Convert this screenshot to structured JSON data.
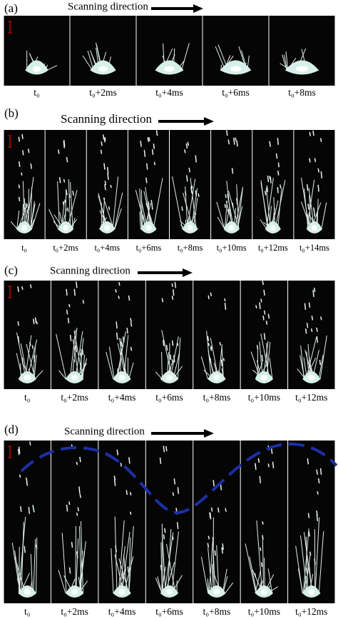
{
  "panels": [
    {
      "label": "(a)",
      "direction": "Scanning direction",
      "frames": [
        "t₀",
        "t₀+2ms",
        "t₀+4ms",
        "t₀+6ms",
        "t₀+8ms"
      ]
    },
    {
      "label": "(b)",
      "direction": "Scanning direction",
      "frames": [
        "t₀",
        "t₀+2ms",
        "t₀+4ms",
        "t₀+6ms",
        "t₀+8ms",
        "t₀+10ms",
        "t₀+12ms",
        "t₀+14ms"
      ]
    },
    {
      "label": "(c)",
      "direction": "Scanning direction",
      "frames": [
        "t₀",
        "t₀+2ms",
        "t₀+4ms",
        "t₀+6ms",
        "t₀+8ms",
        "t₀+10ms",
        "t₀+12ms"
      ]
    },
    {
      "label": "(d)",
      "direction": "Scanning direction",
      "frames": [
        "t₀",
        "t₀+2ms",
        "t₀+4ms",
        "t₀+6ms",
        "t₀+8ms",
        "t₀+10ms",
        "t₀+12ms"
      ]
    }
  ]
}
